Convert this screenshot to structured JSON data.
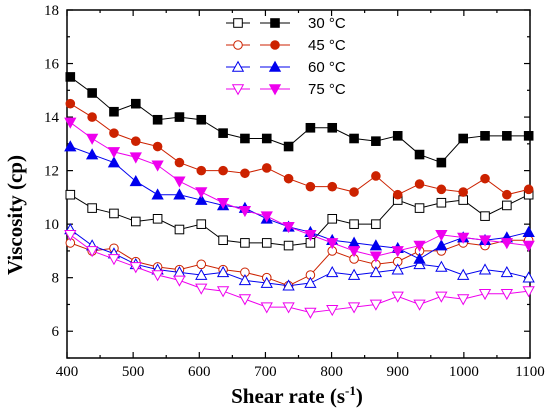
{
  "chart_data": {
    "type": "line",
    "xlabel": "Shear rate (s",
    "xlabel_sup": "-1",
    "xlabel_end": ")",
    "ylabel": "Viscosity (cp)",
    "xlim": [
      400,
      1100
    ],
    "ylim": [
      5,
      18
    ],
    "xticks": [
      400,
      500,
      600,
      700,
      800,
      900,
      1000,
      1100
    ],
    "yticks": [
      6,
      8,
      10,
      12,
      14,
      16,
      18
    ],
    "legend_placement": "top-center",
    "x": [
      405,
      438,
      471,
      504,
      537,
      570,
      603,
      636,
      669,
      702,
      735,
      768,
      801,
      834,
      867,
      900,
      933,
      966,
      999,
      1032,
      1065,
      1098
    ],
    "series": [
      {
        "name": "30 °C",
        "color": "#000000",
        "filled_values": [
          15.5,
          14.9,
          14.2,
          14.5,
          13.9,
          14.0,
          13.9,
          13.4,
          13.2,
          13.2,
          12.9,
          13.6,
          13.6,
          13.2,
          13.1,
          13.3,
          12.6,
          12.3,
          13.2,
          13.3,
          13.3,
          13.3
        ],
        "open_values": [
          11.1,
          10.6,
          10.4,
          10.1,
          10.2,
          9.8,
          10.0,
          9.4,
          9.3,
          9.3,
          9.2,
          9.3,
          10.2,
          10.0,
          10.0,
          10.9,
          10.6,
          10.8,
          10.9,
          10.3,
          10.7,
          11.1
        ]
      },
      {
        "name": "45 °C",
        "color": "#cc2200",
        "filled_values": [
          14.5,
          14.0,
          13.4,
          13.1,
          12.9,
          12.3,
          12.0,
          12.0,
          11.9,
          12.1,
          11.7,
          11.4,
          11.4,
          11.2,
          11.8,
          11.1,
          11.5,
          11.3,
          11.2,
          11.7,
          11.1,
          11.3
        ],
        "open_values": [
          9.3,
          9.0,
          9.1,
          8.6,
          8.4,
          8.3,
          8.5,
          8.3,
          8.2,
          8.0,
          7.7,
          8.1,
          9.0,
          8.7,
          8.5,
          8.6,
          9.0,
          9.0,
          9.3,
          9.2,
          9.4,
          9.4
        ]
      },
      {
        "name": "60 °C",
        "color": "#0000ee",
        "filled_values": [
          12.9,
          12.6,
          12.3,
          11.6,
          11.1,
          11.1,
          10.9,
          10.7,
          10.6,
          10.2,
          9.9,
          9.7,
          9.4,
          9.3,
          9.2,
          9.1,
          8.7,
          9.2,
          9.5,
          9.4,
          9.5,
          9.7
        ],
        "open_values": [
          9.8,
          9.2,
          8.9,
          8.5,
          8.3,
          8.2,
          8.1,
          8.2,
          7.9,
          7.8,
          7.7,
          7.8,
          8.2,
          8.1,
          8.2,
          8.3,
          8.5,
          8.4,
          8.1,
          8.3,
          8.2,
          8.0
        ]
      },
      {
        "name": "75 °C",
        "color": "#ee00ee",
        "filled_values": [
          13.8,
          13.2,
          12.7,
          12.5,
          12.2,
          11.6,
          11.2,
          10.8,
          10.5,
          10.3,
          9.9,
          9.6,
          9.3,
          9.0,
          8.8,
          9.0,
          9.2,
          9.6,
          9.5,
          9.4,
          9.3,
          9.2
        ],
        "open_values": [
          9.6,
          9.0,
          8.7,
          8.4,
          8.1,
          7.9,
          7.6,
          7.5,
          7.2,
          6.9,
          6.9,
          6.7,
          6.8,
          6.9,
          7.0,
          7.3,
          7.0,
          7.3,
          7.2,
          7.4,
          7.4,
          7.5
        ]
      }
    ],
    "grid": false
  }
}
